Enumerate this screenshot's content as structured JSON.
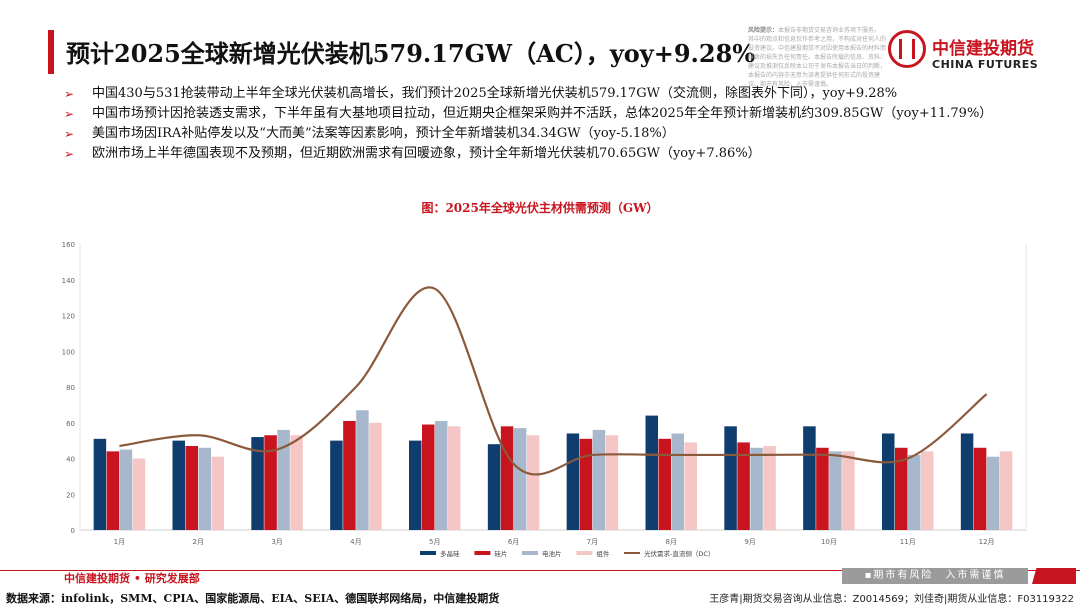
{
  "slide": {
    "title": "预计2025全球新增光伏装机579.17GW（AC），yoy+9.28%",
    "disclaimer_label": "风险提示：",
    "disclaimer_text": "本报告非期货交易咨询业务项下服务，其中的观点和信息仅作参考之用，不构成对任何人的投资建议。中信建投期货不对因使用本报告的材料而导致的损失负任何责任。本报告所载的信息、资料、建议及推测仅反映本公司于发布本报告当日的判断，本报告的内容亦无意为读者提供任何形式的投资建议。期市有风险，入市需谨慎。",
    "logo_cn": "中信建投期货",
    "logo_en": "CHINA FUTURES",
    "bullets": [
      "中国430与531抢装带动上半年全球光伏装机高增长，我们预计2025全球新增光伏装机579.17GW（交流侧，除图表外下同），yoy+9.28%",
      "中国市场预计因抢装透支需求，下半年虽有大基地项目拉动，但近期央企框架采购并不活跃，总体2025年全年预计新增装机约309.85GW（yoy+11.79%）",
      "美国市场因IRA补贴停发以及“大而美”法案等因素影响，预计全年新增装机34.34GW（yoy-5.18%）",
      "欧洲市场上半年德国表现不及预期，但近期欧洲需求有回暖迹象，预计全年新增光伏装机70.65GW（yoy+7.86%）"
    ],
    "bullet_marker": "➢",
    "footer_org": "中信建投期货 • 研究发展部",
    "footer_warning": "▪期市有风险　入市需谨慎",
    "footer_source": "数据来源：infolink，SMM、CPIA、国家能源局、EIA、SEIA、德国联邦网络局，中信建投期货",
    "footer_authors": "王彦青|期货交易咨询从业信息：Z0014569；刘佳奇|期货从业信息：F03119322"
  },
  "chart_data": {
    "type": "bar",
    "title": "图：2025年全球光伏主材供需预测（GW）",
    "categories": [
      "1月",
      "2月",
      "3月",
      "4月",
      "5月",
      "6月",
      "7月",
      "8月",
      "9月",
      "10月",
      "11月",
      "12月"
    ],
    "ylim": [
      0,
      160
    ],
    "yticks": [
      0,
      20,
      40,
      60,
      80,
      100,
      120,
      140,
      160
    ],
    "grid": false,
    "legend_position": "bottom",
    "series": [
      {
        "name": "多晶硅",
        "type": "bar",
        "color": "#0e3d6e",
        "values": [
          51,
          50,
          52,
          50,
          50,
          48,
          54,
          64,
          58,
          58,
          54,
          54
        ]
      },
      {
        "name": "硅片",
        "type": "bar",
        "color": "#c8141e",
        "values": [
          44,
          47,
          53,
          61,
          59,
          58,
          51,
          51,
          49,
          46,
          46,
          46
        ]
      },
      {
        "name": "电池片",
        "type": "bar",
        "color": "#a8b8cc",
        "values": [
          45,
          46,
          56,
          67,
          61,
          57,
          56,
          54,
          46,
          44,
          42,
          41
        ]
      },
      {
        "name": "组件",
        "type": "bar",
        "color": "#f5c6c6",
        "values": [
          40,
          41,
          53,
          60,
          58,
          53,
          53,
          49,
          47,
          44,
          44,
          44
        ]
      },
      {
        "name": "光伏需求-直流侧（DC）",
        "type": "line",
        "color": "#8b5a3c",
        "values": [
          47,
          53,
          45,
          80,
          135,
          37,
          42,
          42,
          42,
          42,
          40,
          76
        ]
      }
    ]
  }
}
